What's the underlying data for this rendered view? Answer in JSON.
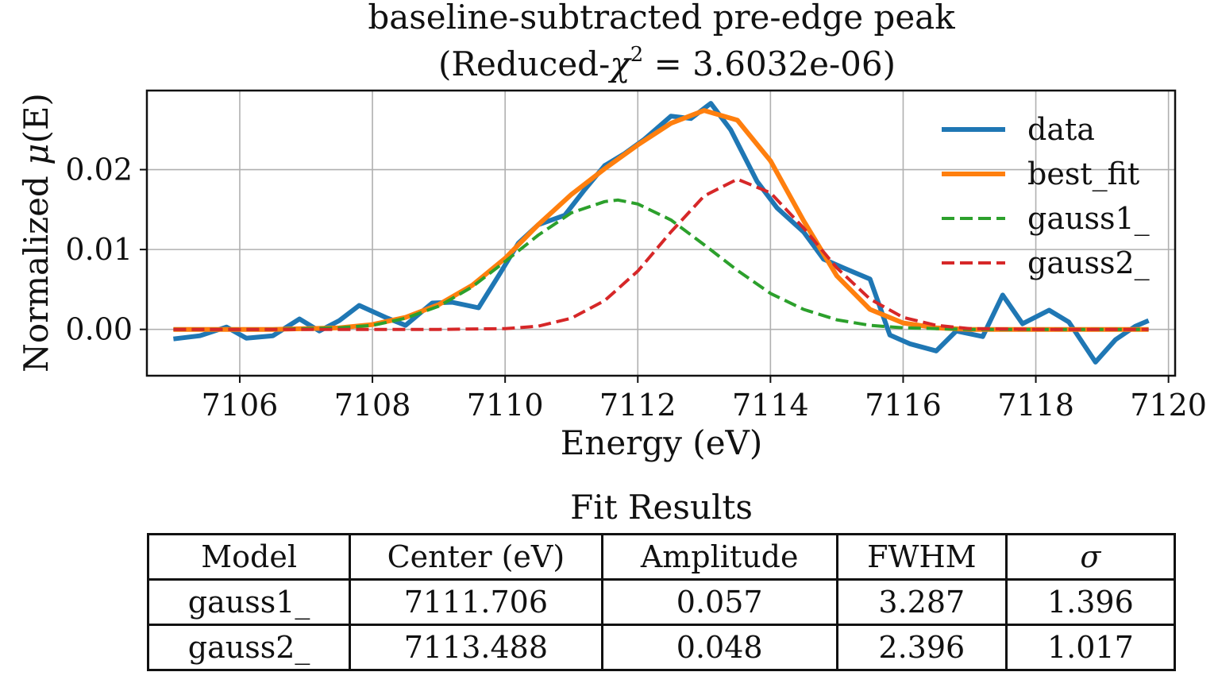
{
  "chart_data": {
    "type": "line",
    "title": "baseline-subtracted pre-edge peak",
    "subtitle_prefix": "(Reduced-",
    "subtitle_symbol": "χ",
    "subtitle_sup": "2",
    "subtitle_suffix": " = 3.6032e-06)",
    "xlabel": "Energy (eV)",
    "ylabel_prefix": "Normalized ",
    "ylabel_symbol": "μ",
    "ylabel_suffix": "(E)",
    "xlim": [
      7104.6,
      7120.1
    ],
    "ylim": [
      -0.0058,
      0.0299
    ],
    "xticks": [
      7106,
      7108,
      7110,
      7112,
      7114,
      7116,
      7118,
      7120
    ],
    "yticks": [
      0.0,
      0.01,
      0.02
    ],
    "ytick_labels": [
      "0.00",
      "0.01",
      "0.02"
    ],
    "grid": true,
    "legend_position": "top-right",
    "series": [
      {
        "name": "data",
        "color": "#1f77b4",
        "style": "solid",
        "x": [
          7105.0,
          7105.4,
          7105.8,
          7106.1,
          7106.5,
          7106.9,
          7107.2,
          7107.5,
          7107.8,
          7108.2,
          7108.5,
          7108.9,
          7109.2,
          7109.6,
          7109.9,
          7110.2,
          7110.5,
          7110.9,
          7111.2,
          7111.5,
          7111.8,
          7112.1,
          7112.5,
          7112.8,
          7113.1,
          7113.4,
          7113.8,
          7114.1,
          7114.5,
          7114.8,
          7115.1,
          7115.5,
          7115.8,
          7116.1,
          7116.5,
          7116.8,
          7117.2,
          7117.5,
          7117.8,
          7118.2,
          7118.5,
          7118.9,
          7119.2,
          7119.5,
          7119.7
        ],
        "y": [
          -0.0012,
          -0.0008,
          0.0003,
          -0.0011,
          -0.0008,
          0.0013,
          -0.0002,
          0.0011,
          0.003,
          0.0015,
          0.0005,
          0.0033,
          0.0034,
          0.0027,
          0.0067,
          0.0108,
          0.0131,
          0.0143,
          0.0175,
          0.0205,
          0.022,
          0.0238,
          0.0267,
          0.0264,
          0.0283,
          0.025,
          0.0185,
          0.0152,
          0.0122,
          0.0088,
          0.0077,
          0.0063,
          -0.0007,
          -0.0018,
          -0.0027,
          -0.0002,
          -0.0009,
          0.0043,
          0.0007,
          0.0024,
          0.0009,
          -0.0041,
          -0.0013,
          0.0004,
          0.0011
        ]
      },
      {
        "name": "best_fit",
        "color": "#ff7f0e",
        "style": "solid",
        "x": [
          7105.0,
          7105.5,
          7106.0,
          7106.5,
          7107.0,
          7107.5,
          7108.0,
          7108.5,
          7109.0,
          7109.5,
          7110.0,
          7110.5,
          7111.0,
          7111.5,
          7112.0,
          7112.5,
          7113.0,
          7113.5,
          7114.0,
          7114.5,
          7115.0,
          7115.5,
          7116.0,
          7116.5,
          7117.0,
          7117.5,
          7118.0,
          7118.5,
          7119.0,
          7119.5,
          7119.7
        ],
        "y": [
          0.0,
          0.0,
          0.0,
          0.0,
          0.0001,
          0.0002,
          0.0006,
          0.0015,
          0.0031,
          0.0055,
          0.0089,
          0.0131,
          0.0169,
          0.0201,
          0.0231,
          0.0258,
          0.0274,
          0.0262,
          0.0211,
          0.0136,
          0.0067,
          0.0025,
          0.0008,
          0.0002,
          0.0,
          0.0,
          0.0,
          0.0,
          0.0,
          0.0,
          0.0
        ]
      },
      {
        "name": "gauss1_",
        "color": "#2ca02c",
        "style": "dashed",
        "x": [
          7105.0,
          7105.5,
          7106.0,
          7106.5,
          7107.0,
          7107.5,
          7108.0,
          7108.5,
          7109.0,
          7109.5,
          7110.0,
          7110.5,
          7111.0,
          7111.5,
          7111.7,
          7112.0,
          7112.5,
          7113.0,
          7113.5,
          7114.0,
          7114.5,
          7115.0,
          7115.5,
          7116.0,
          7116.5,
          7117.0,
          7117.5,
          7118.0,
          7118.5,
          7119.0,
          7119.5,
          7119.7
        ],
        "y": [
          0.0,
          0.0,
          0.0,
          0.0,
          0.0001,
          0.0002,
          0.0005,
          0.0014,
          0.0029,
          0.0053,
          0.0085,
          0.0118,
          0.0146,
          0.016,
          0.0162,
          0.0157,
          0.0137,
          0.0106,
          0.0074,
          0.0045,
          0.0025,
          0.0012,
          0.0005,
          0.0002,
          0.0001,
          0.0,
          0.0,
          0.0,
          0.0,
          0.0,
          0.0,
          0.0
        ]
      },
      {
        "name": "gauss2_",
        "color": "#d62728",
        "style": "dashed",
        "x": [
          7105.0,
          7106.0,
          7107.0,
          7108.0,
          7109.0,
          7110.0,
          7110.5,
          7111.0,
          7111.5,
          7112.0,
          7112.5,
          7113.0,
          7113.5,
          7114.0,
          7114.5,
          7115.0,
          7115.5,
          7116.0,
          7116.5,
          7117.0,
          7118.0,
          7119.0,
          7119.7
        ],
        "y": [
          0.0,
          0.0,
          0.0,
          0.0,
          0.0,
          0.0001,
          0.0004,
          0.0014,
          0.0036,
          0.0073,
          0.0122,
          0.0167,
          0.0188,
          0.0171,
          0.0127,
          0.0077,
          0.0038,
          0.0015,
          0.0005,
          0.0001,
          0.0,
          0.0,
          0.0
        ]
      }
    ]
  },
  "table": {
    "title": "Fit Results",
    "headers": [
      "Model",
      "Center (eV)",
      "Amplitude",
      "FWHM",
      "σ"
    ],
    "rows": [
      [
        "gauss1_",
        "7111.706",
        "0.057",
        "3.287",
        "1.396"
      ],
      [
        "gauss2_",
        "7113.488",
        "0.048",
        "2.396",
        "1.017"
      ]
    ]
  }
}
